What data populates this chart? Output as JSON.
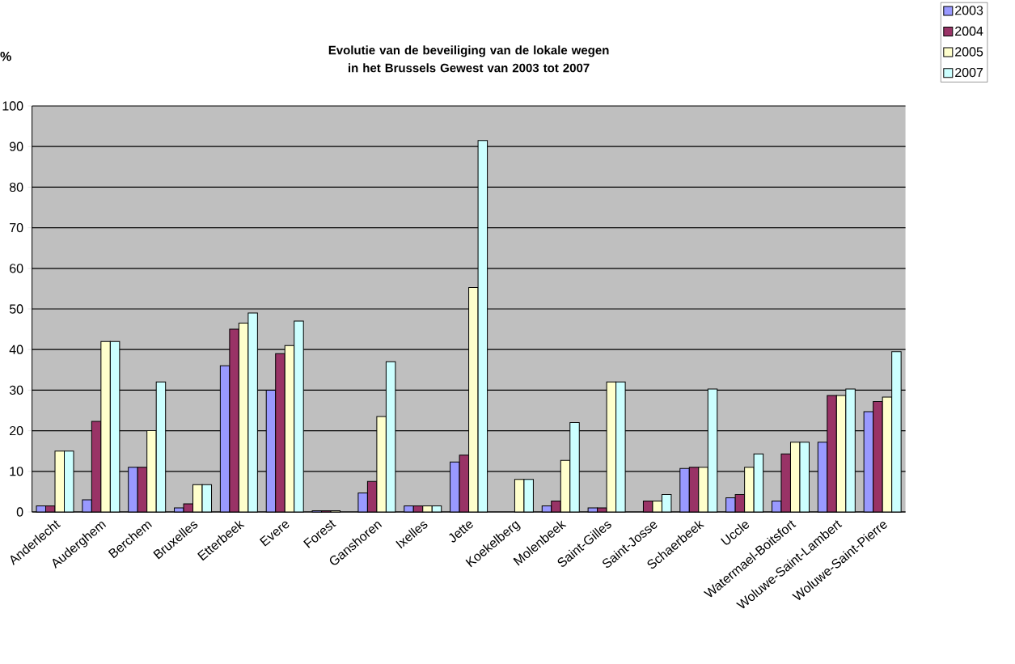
{
  "chart_data": {
    "type": "bar",
    "title": "Evolutie van de beveiliging van de lokale wegen in het Brussels Gewest van 2003 tot 2007",
    "ylabel": "%",
    "categories": [
      "Anderlecht",
      "Auderghem",
      "Berchem",
      "Bruxelles",
      "Etterbeek",
      "Evere",
      "Forest",
      "Ganshoren",
      "Ixelles",
      "Jette",
      "Koekelberg",
      "Molenbeek",
      "Saint-Gilles",
      "Saint-Josse",
      "Schaerbeek",
      "Uccle",
      "Watermael-Boitsfort",
      "Woluwe-Saint-Lambert",
      "Woluwe-Saint-Pierre"
    ],
    "series": [
      {
        "name": "2003",
        "color": "#9999ff",
        "values": [
          1.5,
          3,
          11,
          1,
          36,
          30,
          0.3,
          4.7,
          1.5,
          12.3,
          null,
          1.5,
          1,
          null,
          10.7,
          3.5,
          2.7,
          17.2,
          24.7
        ]
      },
      {
        "name": "2004",
        "color": "#993366",
        "values": [
          1.5,
          22.3,
          11,
          2,
          45,
          39,
          0.3,
          7.5,
          1.5,
          14,
          null,
          2.7,
          1,
          2.7,
          11,
          4.3,
          14.3,
          28.7,
          27.2
        ]
      },
      {
        "name": "2005",
        "color": "#ffffcc",
        "values": [
          15,
          42,
          20,
          6.7,
          46.5,
          41,
          0.3,
          23.5,
          1.5,
          55.3,
          8,
          12.7,
          32,
          2.7,
          11,
          11,
          17.2,
          28.7,
          28.3
        ]
      },
      {
        "name": "2007",
        "color": "#ccffff",
        "values": [
          15,
          42,
          32,
          6.7,
          49,
          47,
          null,
          37,
          1.5,
          91.5,
          8,
          22,
          32,
          4.3,
          30.3,
          14.3,
          17.2,
          30.3,
          39.5
        ]
      }
    ],
    "ylim": [
      0,
      100
    ],
    "yticks": [
      0,
      10,
      20,
      30,
      40,
      50,
      60,
      70,
      80,
      90,
      100
    ],
    "grid": "y",
    "legend": "top right"
  }
}
